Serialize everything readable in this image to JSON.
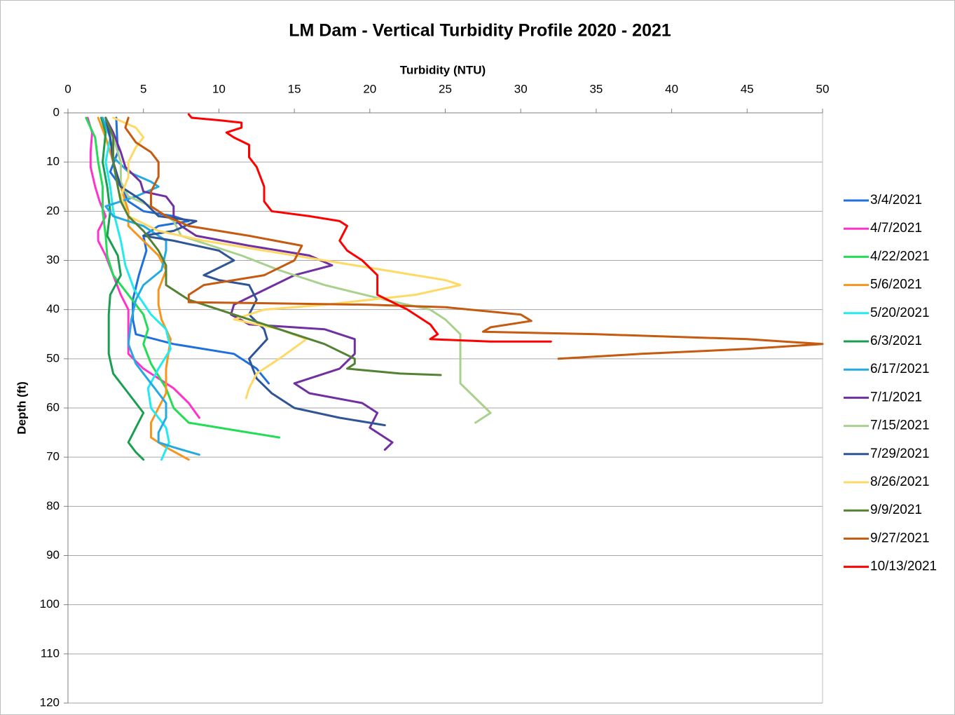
{
  "chart_data": {
    "type": "line",
    "title": "LM Dam - Vertical Turbidity Profile 2020 - 2021",
    "x_label": "Turbidity (NTU)",
    "y_label": "Depth (ft)",
    "xlim": [
      0,
      50
    ],
    "xticks": [
      0,
      5,
      10,
      15,
      20,
      25,
      30,
      35,
      40,
      45,
      50
    ],
    "ylim": [
      0,
      120
    ],
    "yticks": [
      0,
      10,
      20,
      30,
      40,
      50,
      60,
      70,
      80,
      90,
      100,
      110,
      120
    ],
    "y_inverted": true,
    "x_axis_position": "top",
    "grid": true,
    "legend_position": "right",
    "series": [
      {
        "name": "3/4/2021",
        "color": "#1f6fdc",
        "x": [
          3.2,
          3.3,
          2.8,
          3.5,
          4,
          5,
          7,
          8,
          6,
          5,
          5.2,
          4.7,
          4.3,
          4.3,
          4.5,
          7,
          11,
          12.5,
          13.3
        ],
        "values": [
          1,
          8,
          12,
          15,
          18,
          20,
          21,
          22,
          23,
          25,
          28,
          33,
          38,
          42,
          45,
          47,
          49,
          52,
          55
        ]
      },
      {
        "name": "4/7/2021",
        "color": "#ff33cc",
        "x": [
          1.3,
          1.6,
          1.5,
          1.5,
          1.8,
          2.1,
          2.5,
          2,
          2,
          2.5,
          3,
          3.5,
          4,
          4,
          4,
          5,
          7,
          8,
          8.7
        ],
        "values": [
          1,
          4,
          8,
          11,
          15,
          18,
          21,
          24,
          26,
          29,
          33,
          37,
          40,
          45,
          49,
          52,
          56,
          59,
          62
        ]
      },
      {
        "name": "4/22/2021",
        "color": "#22dd55",
        "x": [
          1.2,
          1.8,
          2,
          2.3,
          2.3,
          2.5,
          2.6,
          3,
          4,
          5,
          5.3,
          5,
          5.5,
          6.5,
          7,
          8,
          12,
          14
        ],
        "values": [
          1,
          5,
          10,
          15,
          20,
          25,
          29,
          33,
          37,
          41,
          44,
          47,
          51,
          56,
          60,
          63,
          65,
          66
        ]
      },
      {
        "name": "5/6/2021",
        "color": "#f5961e",
        "x": [
          2,
          2.5,
          3,
          3.5,
          4,
          4,
          5,
          6,
          6.5,
          6,
          6,
          6.2,
          6.8,
          6.5,
          6.5,
          6,
          5.5,
          5.5,
          6.5,
          8
        ],
        "values": [
          1,
          5,
          10,
          15,
          20,
          23,
          26,
          29,
          32,
          36,
          39,
          42,
          46,
          52,
          57,
          60,
          63,
          66,
          68,
          70.5
        ]
      },
      {
        "name": "5/20/2021",
        "color": "#22eaf0",
        "x": [
          2.5,
          2.8,
          2.5,
          2.8,
          3,
          3.5,
          3.8,
          4.4,
          5.5,
          6.5,
          6.8,
          6,
          5.3,
          5.5,
          6.5,
          6.7,
          6.2
        ],
        "values": [
          1,
          5,
          10,
          15,
          20,
          26,
          31,
          36,
          41,
          44,
          48,
          52,
          56,
          60,
          64,
          67,
          70.5
        ]
      },
      {
        "name": "6/3/2021",
        "color": "#1a9e4f",
        "x": [
          2.2,
          2.5,
          2.3,
          2.6,
          2.8,
          2.6,
          3.3,
          3.5,
          2.8,
          2.7,
          2.7,
          2.7,
          3,
          4,
          5,
          4.5,
          4,
          4.5,
          5
        ],
        "values": [
          1,
          4,
          10,
          15,
          20,
          25,
          29,
          33,
          37,
          41,
          45,
          49,
          53,
          57,
          61,
          64,
          67,
          69,
          70.5
        ]
      },
      {
        "name": "6/17/2021",
        "color": "#24aae1",
        "x": [
          2.3,
          2.8,
          3,
          4,
          5.5,
          6,
          4.5,
          2.5,
          3,
          5,
          6.5,
          6.5,
          6.2,
          5,
          4.5,
          4.2,
          4,
          4.5,
          5.5,
          6.5,
          6.5,
          6,
          6,
          7,
          8.7
        ],
        "values": [
          1,
          5,
          9,
          12,
          14,
          15,
          17,
          19,
          21,
          23,
          26,
          28,
          32,
          35,
          38,
          42,
          47,
          51,
          55,
          59,
          62,
          65,
          67,
          68,
          69.5
        ]
      },
      {
        "name": "7/1/2021",
        "color": "#7030a0",
        "x": [
          2.5,
          3,
          3.5,
          3.8,
          4.8,
          5,
          6.5,
          7,
          7,
          7.5,
          8.5,
          12,
          16,
          17.5,
          15,
          13,
          11,
          10.8,
          12,
          17,
          19,
          19,
          18,
          15,
          16,
          19.5,
          20.5,
          20,
          21,
          21.5,
          21
        ],
        "values": [
          1,
          4,
          8,
          11,
          14,
          16,
          17,
          19,
          21,
          23,
          25,
          27,
          29,
          31,
          33,
          36,
          39,
          41,
          43,
          44,
          46,
          49,
          52,
          55,
          57,
          59,
          61,
          64,
          66,
          67,
          68.5
        ]
      },
      {
        "name": "7/15/2021",
        "color": "#a9d18e",
        "x": [
          2.5,
          3,
          3.5,
          3.5,
          4,
          5.5,
          7,
          7.5,
          9.5,
          11.5,
          14,
          17,
          21,
          24,
          25,
          26,
          26,
          26,
          27,
          28,
          27
        ],
        "values": [
          1,
          5,
          10,
          14,
          17,
          19,
          22,
          25,
          27,
          29,
          32,
          35,
          38,
          40,
          42,
          45,
          50,
          55,
          58,
          61,
          63
        ]
      },
      {
        "name": "7/29/2021",
        "color": "#2f5597",
        "x": [
          2.5,
          2.8,
          3,
          3.5,
          5,
          6,
          8.5,
          7,
          5,
          7,
          10,
          11,
          9,
          10,
          12,
          12.5,
          12,
          13,
          13.2,
          12,
          12.5,
          13.5,
          15,
          18,
          21
        ],
        "values": [
          1,
          5,
          10,
          15,
          18,
          21,
          22,
          24,
          25,
          26,
          28,
          30,
          33,
          34,
          35,
          38,
          41,
          44,
          46,
          50,
          54,
          57,
          60,
          62,
          63.5
        ]
      },
      {
        "name": "8/26/2021",
        "color": "#ffd966",
        "x": [
          3,
          4.5,
          5,
          4.5,
          4,
          4,
          3.5,
          4,
          6,
          9,
          13,
          17,
          21,
          25,
          26,
          23,
          17,
          13,
          11,
          14,
          15.8,
          14,
          12.5,
          12,
          11.8
        ],
        "values": [
          1,
          3,
          5,
          7,
          10,
          13,
          17,
          21,
          24,
          26,
          28,
          30,
          32,
          34,
          35,
          37,
          39,
          40,
          42,
          44,
          46,
          50,
          53,
          56,
          58
        ]
      },
      {
        "name": "9/9/2021",
        "color": "#548235",
        "x": [
          2.5,
          3,
          3,
          3.3,
          3.5,
          4,
          5,
          6,
          6.5,
          6.5,
          8,
          11,
          14,
          17,
          19,
          19,
          18.5,
          22,
          24.7
        ],
        "values": [
          1,
          5,
          10,
          15,
          18,
          21,
          24,
          28,
          31,
          35,
          38,
          41,
          44,
          47,
          50,
          51,
          52,
          53,
          53.3
        ]
      },
      {
        "name": "9/27/2021",
        "color": "#c55a11",
        "x": [
          4,
          3.8,
          4.5,
          5.5,
          6,
          6,
          5.5,
          5.5,
          6.5,
          8,
          12,
          15.5,
          15,
          13,
          9,
          8,
          8,
          20,
          25,
          30,
          30.7,
          28,
          27.5,
          35,
          45,
          50,
          45,
          38,
          32.5
        ],
        "values": [
          1,
          3,
          6,
          8,
          10,
          13,
          16,
          19,
          21,
          23,
          25,
          27,
          30,
          33,
          35,
          37,
          38.5,
          39,
          39.5,
          41,
          42.3,
          43.6,
          44.5,
          45,
          46,
          47,
          48,
          49,
          50
        ]
      },
      {
        "name": "10/13/2021",
        "color": "#ff0000",
        "x": [
          8,
          8.2,
          10,
          11.5,
          11.5,
          10.5,
          11,
          12,
          12,
          12.5,
          13,
          13,
          13.5,
          16,
          18,
          18.5,
          18,
          18.5,
          19.5,
          20.5,
          20.5,
          22.5,
          24,
          24.5,
          24,
          28,
          32
        ],
        "values": [
          0.3,
          1,
          1.5,
          2,
          3,
          4,
          5,
          6.5,
          9,
          11,
          15,
          18,
          20,
          21,
          22,
          23,
          26,
          28,
          30,
          33,
          37,
          40,
          43,
          45,
          46,
          46.5,
          46.5
        ]
      }
    ]
  }
}
